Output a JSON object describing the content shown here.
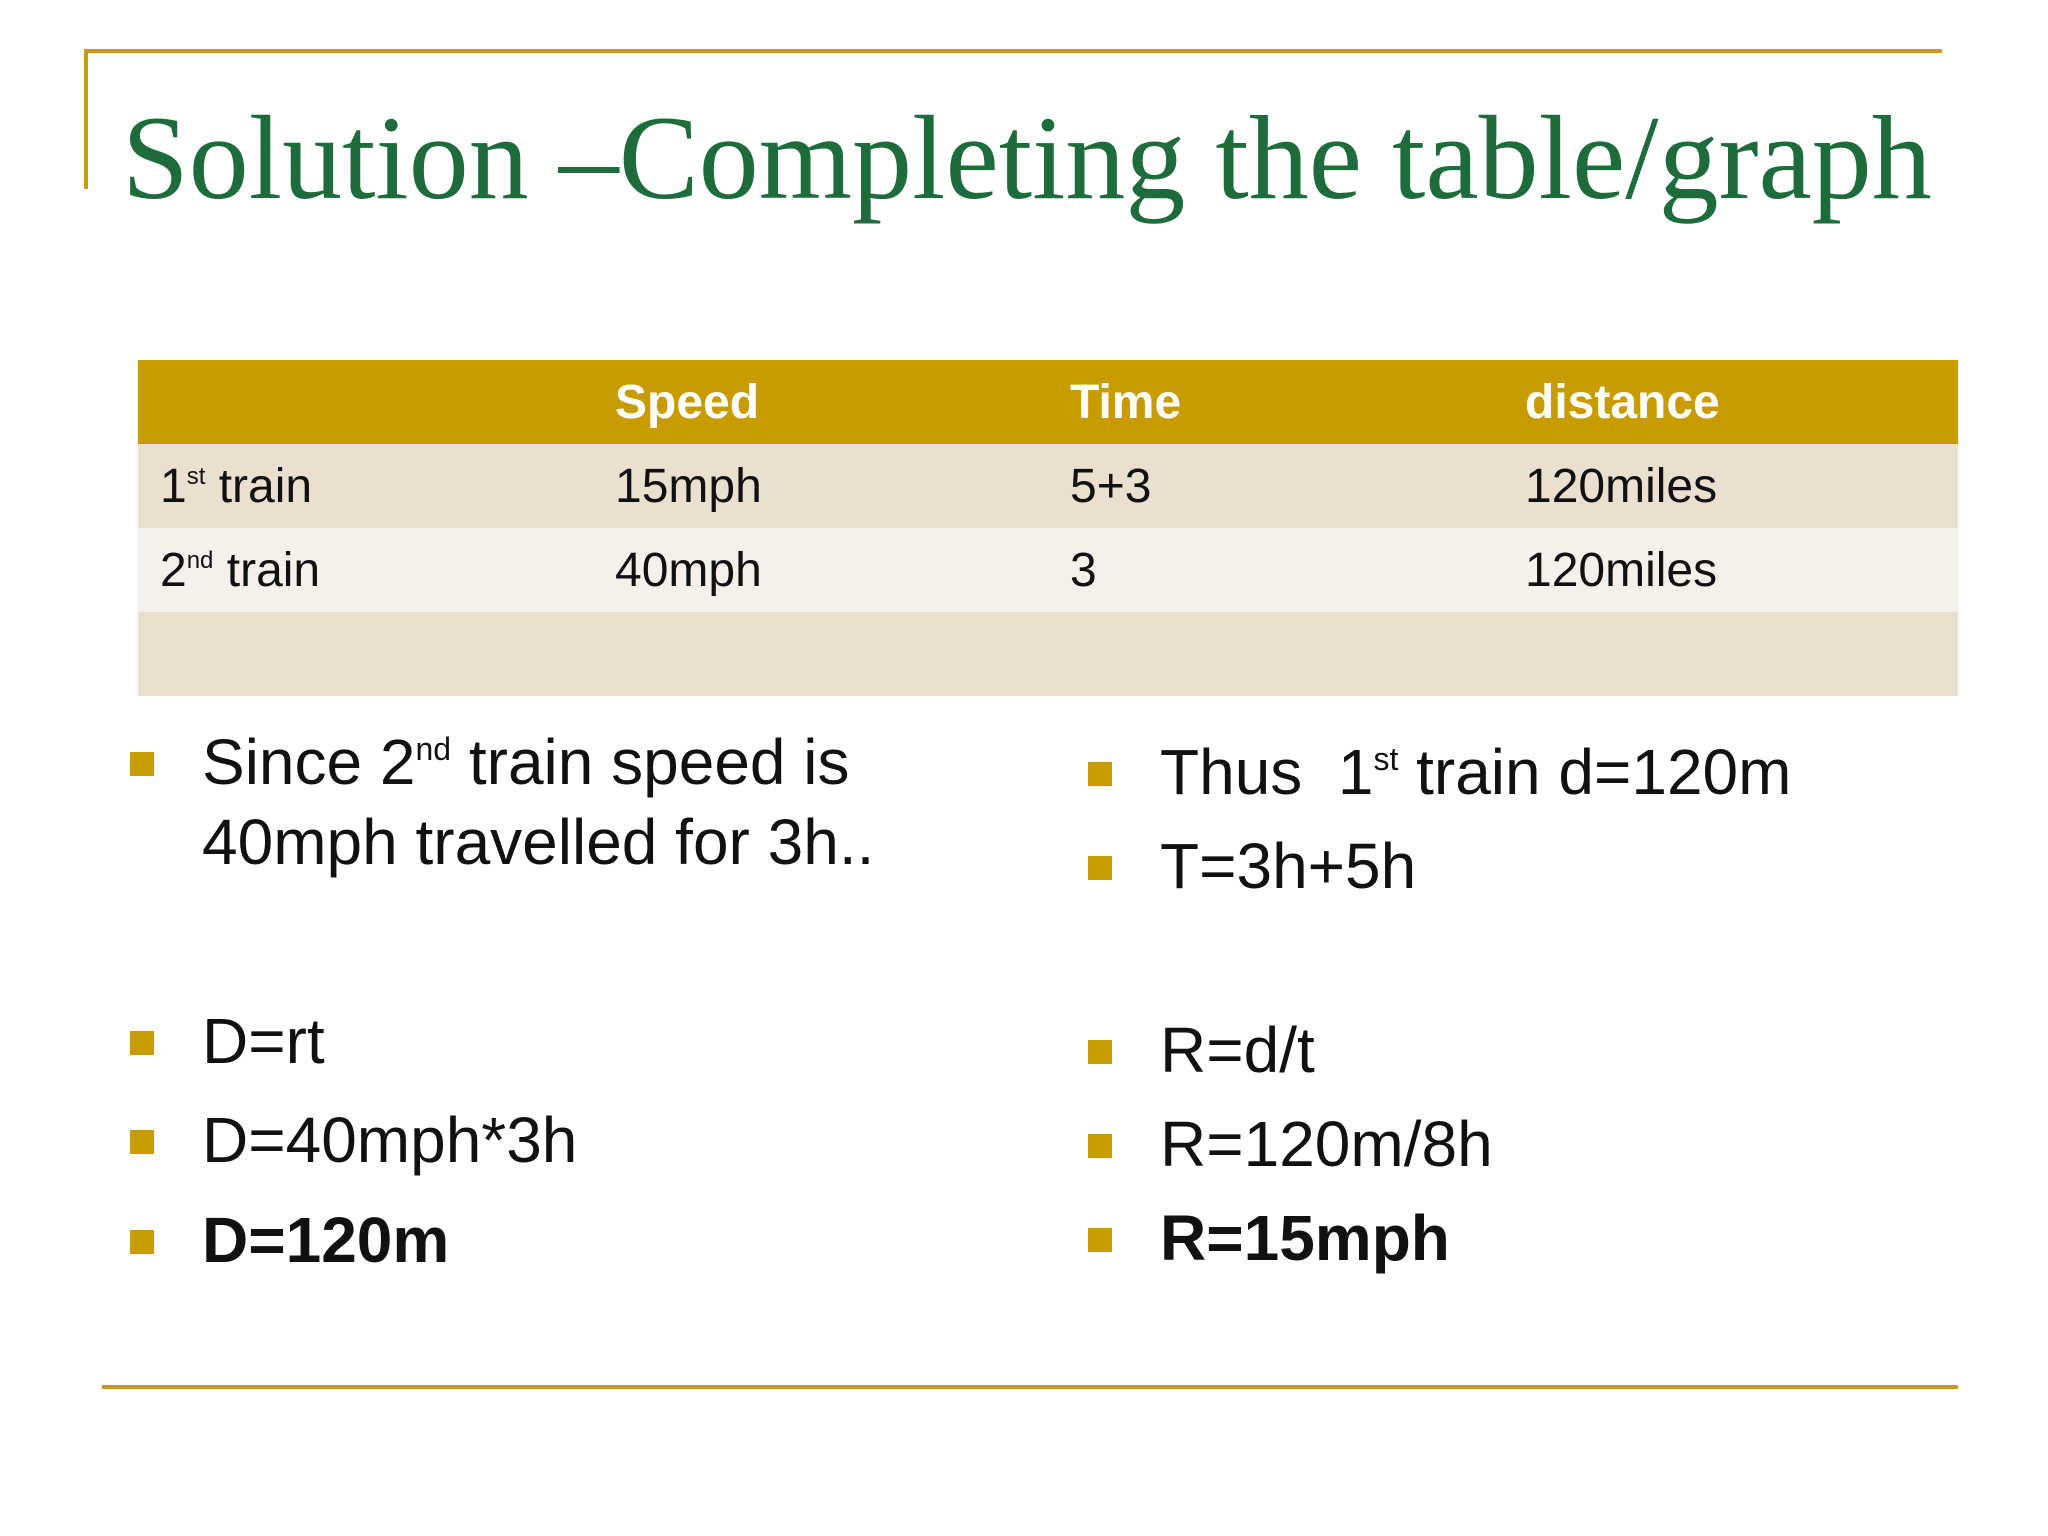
{
  "slide": {
    "title": "Solution –Completing the table/graph",
    "table": {
      "headers": [
        "",
        "Speed",
        "Time",
        "distance"
      ],
      "rows": [
        {
          "label_num": "1",
          "label_sup": "st",
          "label_rest": " train",
          "speed": "15mph",
          "time": "5+3",
          "distance": "120miles"
        },
        {
          "label_num": "2",
          "label_sup": "nd",
          "label_rest": " train",
          "speed": "40mph",
          "time": "3",
          "distance": "120miles"
        }
      ]
    },
    "left_bullets": {
      "b1_pre": "Since 2",
      "b1_sup": "nd",
      "b1_post": " train speed is",
      "b1_line2": "40mph travelled for 3h..",
      "b2": "D=rt",
      "b3": "D=40mph*3h",
      "b4": "D=120m"
    },
    "right_bullets": {
      "b1_pre": "Thus  1",
      "b1_sup": "st",
      "b1_post": " train d=120m",
      "b2": "T=3h+5h",
      "b3": "R=d/t",
      "b4": "R=120m/8h",
      "b5": "R=15mph"
    },
    "colors": {
      "accent": "#c89b00",
      "title": "#1e6b3c",
      "row_dark": "#ebdfd0",
      "row_light": "#f6f0ea"
    }
  }
}
